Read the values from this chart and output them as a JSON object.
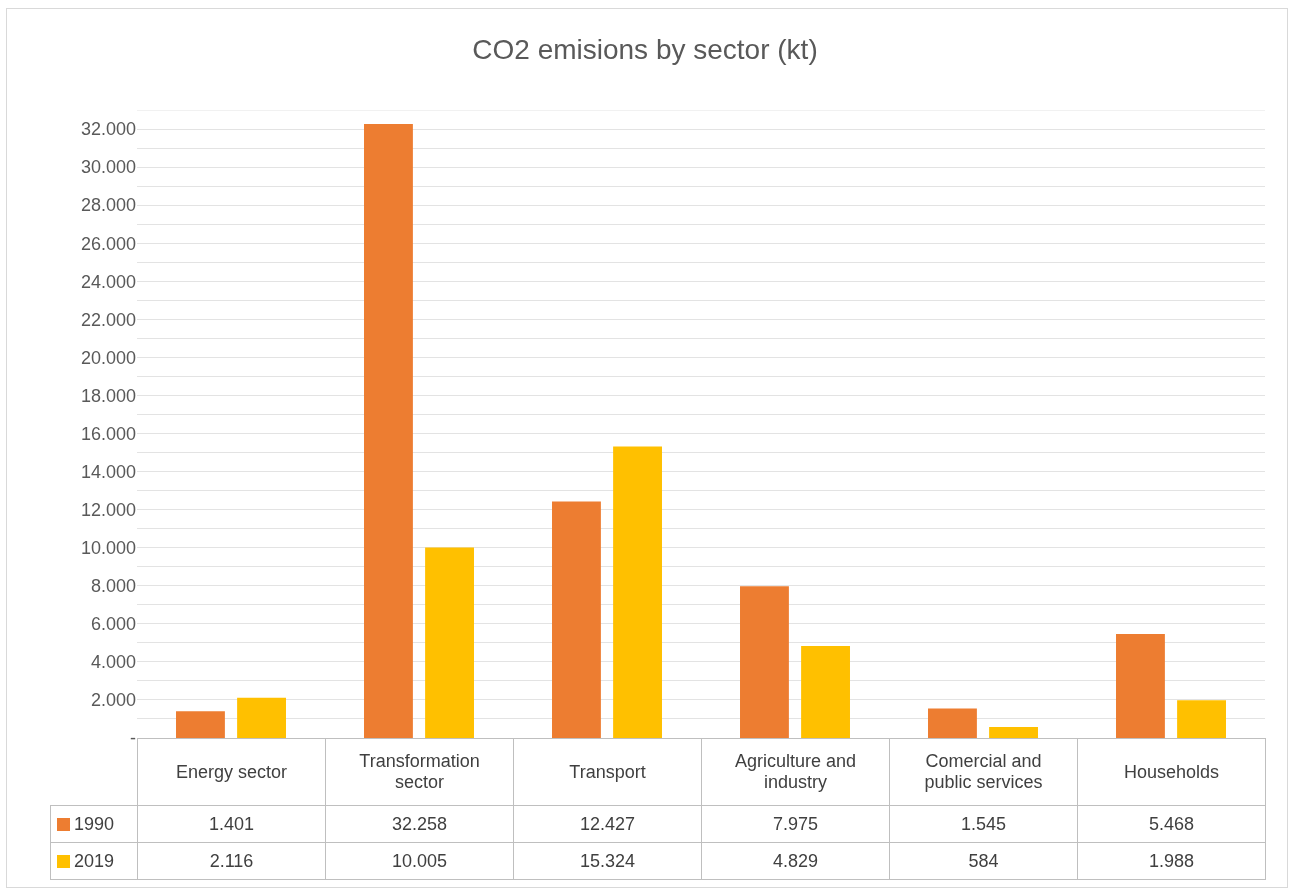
{
  "chart_data": {
    "type": "bar",
    "title": "CO2 emisions by sector (kt)",
    "categories": [
      "Energy sector",
      "Transformation sector",
      "Transport",
      "Agriculture and industry",
      "Comercial and public services",
      "Households"
    ],
    "series": [
      {
        "name": "1990",
        "color": "#ed7d31",
        "values": [
          1401,
          32258,
          12427,
          7975,
          1545,
          5468
        ],
        "value_labels": [
          "1.401",
          "32.258",
          "12.427",
          "7.975",
          "1.545",
          "5.468"
        ]
      },
      {
        "name": "2019",
        "color": "#ffc000",
        "values": [
          2116,
          10005,
          15324,
          4829,
          584,
          1988
        ],
        "value_labels": [
          "2.116",
          "10.005",
          "15.324",
          "4.829",
          "584",
          "1.988"
        ]
      }
    ],
    "ylim": [
      0,
      33000
    ],
    "yticks": [
      {
        "value": 0,
        "label": "-"
      },
      {
        "value": 1000,
        "label": null
      },
      {
        "value": 2000,
        "label": "2.000"
      },
      {
        "value": 3000,
        "label": null
      },
      {
        "value": 4000,
        "label": "4.000"
      },
      {
        "value": 5000,
        "label": null
      },
      {
        "value": 6000,
        "label": "6.000"
      },
      {
        "value": 7000,
        "label": null
      },
      {
        "value": 8000,
        "label": "8.000"
      },
      {
        "value": 9000,
        "label": null
      },
      {
        "value": 10000,
        "label": "10.000"
      },
      {
        "value": 11000,
        "label": null
      },
      {
        "value": 12000,
        "label": "12.000"
      },
      {
        "value": 13000,
        "label": null
      },
      {
        "value": 14000,
        "label": "14.000"
      },
      {
        "value": 15000,
        "label": null
      },
      {
        "value": 16000,
        "label": "16.000"
      },
      {
        "value": 17000,
        "label": null
      },
      {
        "value": 18000,
        "label": "18.000"
      },
      {
        "value": 19000,
        "label": null
      },
      {
        "value": 20000,
        "label": "20.000"
      },
      {
        "value": 21000,
        "label": null
      },
      {
        "value": 22000,
        "label": "22.000"
      },
      {
        "value": 23000,
        "label": null
      },
      {
        "value": 24000,
        "label": "24.000"
      },
      {
        "value": 25000,
        "label": null
      },
      {
        "value": 26000,
        "label": "26.000"
      },
      {
        "value": 27000,
        "label": null
      },
      {
        "value": 28000,
        "label": "28.000"
      },
      {
        "value": 29000,
        "label": null
      },
      {
        "value": 30000,
        "label": "30.000"
      },
      {
        "value": 31000,
        "label": null
      },
      {
        "value": 32000,
        "label": "32.000"
      },
      {
        "value": 33000,
        "label": null
      }
    ],
    "grid": "y",
    "legend": "bottom left"
  }
}
